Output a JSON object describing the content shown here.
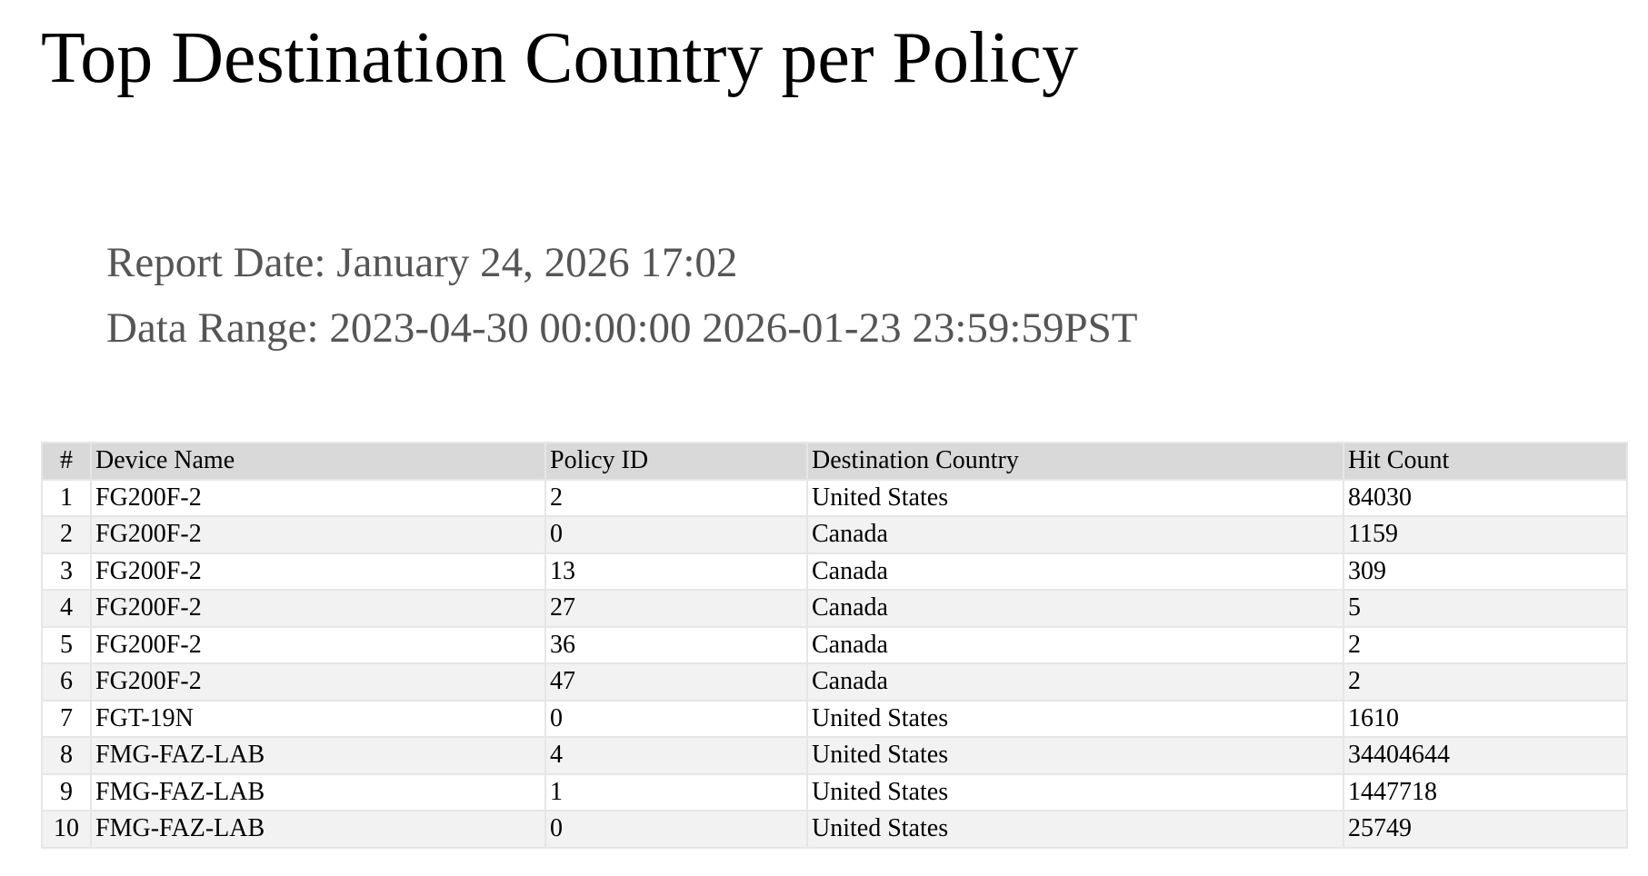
{
  "header": {
    "title": "Top Destination Country per Policy",
    "report_date": "Report Date: January 24, 2026 17:02",
    "data_range": "Data Range: 2023-04-30 00:00:00 2026-01-23 23:59:59PST"
  },
  "table": {
    "columns": [
      "#",
      "Device Name",
      "Policy ID",
      "Destination Country",
      "Hit Count"
    ],
    "rows": [
      [
        1,
        "FG200F-2",
        2,
        "United States",
        84030
      ],
      [
        2,
        "FG200F-2",
        0,
        "Canada",
        1159
      ],
      [
        3,
        "FG200F-2",
        13,
        "Canada",
        309
      ],
      [
        4,
        "FG200F-2",
        27,
        "Canada",
        5
      ],
      [
        5,
        "FG200F-2",
        36,
        "Canada",
        2
      ],
      [
        6,
        "FG200F-2",
        47,
        "Canada",
        2
      ],
      [
        7,
        "FGT-19N",
        0,
        "United States",
        1610
      ],
      [
        8,
        "FMG-FAZ-LAB",
        4,
        "United States",
        34404644
      ],
      [
        9,
        "FMG-FAZ-LAB",
        1,
        "United States",
        1447718
      ],
      [
        10,
        "FMG-FAZ-LAB",
        0,
        "United States",
        25749
      ]
    ]
  }
}
